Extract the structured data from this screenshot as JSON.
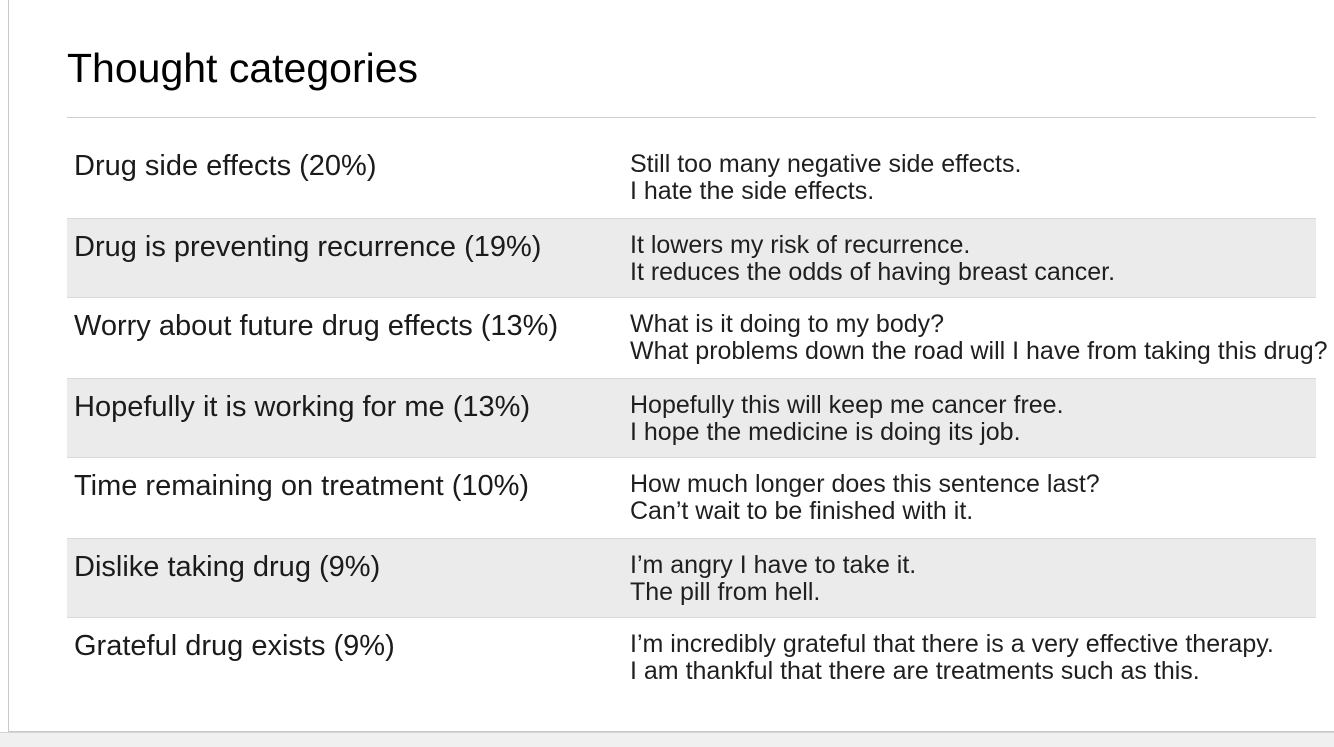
{
  "page": {
    "title": "Thought categories"
  },
  "table": {
    "rows": [
      {
        "category": "Drug side effects (20%)",
        "quotes": [
          "Still too many negative side effects.",
          "I hate the side effects."
        ],
        "shaded": false
      },
      {
        "category": "Drug is preventing recurrence (19%)",
        "quotes": [
          "It lowers my risk of recurrence.",
          "It reduces the odds of having breast cancer."
        ],
        "shaded": true
      },
      {
        "category": "Worry about future drug effects (13%)",
        "quotes": [
          "What is it doing to my body?",
          "What problems down the road will I have from taking this drug?"
        ],
        "shaded": false
      },
      {
        "category": "Hopefully it is working for me (13%)",
        "quotes": [
          "Hopefully this will keep me cancer free.",
          "I hope the medicine is doing its job."
        ],
        "shaded": true
      },
      {
        "category": "Time remaining on treatment (10%)",
        "quotes": [
          "How much longer does this sentence last?",
          "Can’t wait to be finished with it."
        ],
        "shaded": false
      },
      {
        "category": "Dislike taking drug (9%)",
        "quotes": [
          "I’m angry I have to take it.",
          "The pill from hell."
        ],
        "shaded": true
      },
      {
        "category": "Grateful drug exists (9%)",
        "quotes": [
          "I’m incredibly grateful that there is a very effective therapy.",
          "I am thankful that there are treatments such as this."
        ],
        "shaded": false
      }
    ]
  },
  "colors": {
    "card_background": "#ffffff",
    "shaded_row_background": "#ebebeb",
    "shaded_row_border": "#d9d9d9",
    "divider": "#cfcfcf",
    "card_border": "#c9c9c9",
    "page_background": "#f0f0f0",
    "text": "#1b1b1b"
  }
}
